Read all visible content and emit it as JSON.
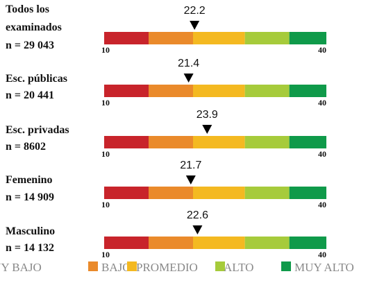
{
  "chart_data": {
    "type": "gauge",
    "categories": [
      [
        "Todos los",
        "examinados",
        "n = 29 043"
      ],
      [
        "Esc. públicas",
        " n = 20 441"
      ],
      [
        "Esc. privadas",
        " n = 8602"
      ],
      [
        "Femenino",
        "n = 14 909"
      ],
      [
        "Masculino",
        "n = 14 132"
      ]
    ],
    "values": [
      22.2,
      21.4,
      23.9,
      21.7,
      22.6
    ],
    "xlim": [
      10,
      40
    ],
    "xticks": [
      10,
      40
    ],
    "bands": [
      {
        "name": "MUY BAJO",
        "color": "#c8242b",
        "range": [
          10,
          16
        ]
      },
      {
        "name": "BAJO",
        "color": "#ea8a2b",
        "range": [
          16,
          22
        ]
      },
      {
        "name": "PROMEDIO",
        "color": "#f4b921",
        "range": [
          22,
          29
        ]
      },
      {
        "name": "ALTO",
        "color": "#a6cb3b",
        "range": [
          29,
          35
        ]
      },
      {
        "name": "MUY ALTO",
        "color": "#0f9a4a",
        "range": [
          35,
          40
        ]
      }
    ]
  }
}
